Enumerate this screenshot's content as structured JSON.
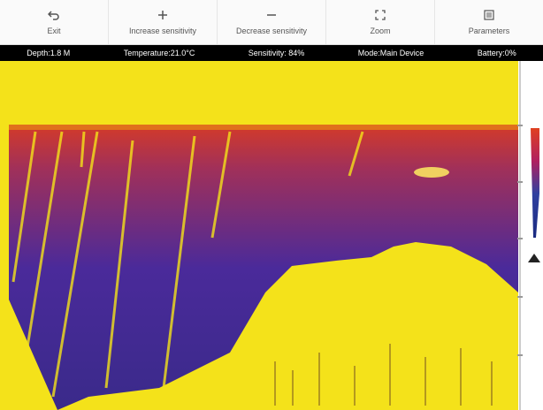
{
  "toolbar": {
    "buttons": [
      "Exit",
      "Increase sensitivity",
      "Decrease sensitivity",
      "Zoom",
      "Parameters"
    ]
  },
  "status_bar": [
    "Depth:1.8 M",
    "Temperature:21.0°C",
    "Sensitivity: 84%",
    "Mode:Main Device",
    "Battery:0%"
  ]
}
